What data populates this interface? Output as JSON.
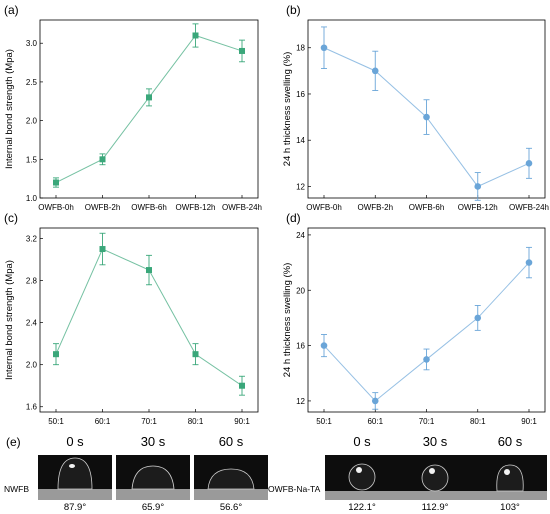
{
  "chart_data": [
    {
      "panel": "(a)",
      "type": "line",
      "color": "#3aa77a",
      "marker": "square",
      "ylabel": "Internal bond strength (Mpa)",
      "categories": [
        "OWFB-0h",
        "OWFB-2h",
        "OWFB-6h",
        "OWFB-12h",
        "OWFB-24h"
      ],
      "values": [
        1.2,
        1.5,
        2.3,
        3.1,
        2.9
      ],
      "errors": [
        0.06,
        0.07,
        0.11,
        0.15,
        0.14
      ],
      "ylim": [
        1.0,
        3.3
      ],
      "yticks": [
        1.0,
        1.5,
        2.0,
        2.5,
        3.0
      ],
      "ytick_labels": [
        "1.0",
        "1.5",
        "2.0",
        "2.5",
        "3.0"
      ]
    },
    {
      "panel": "(b)",
      "type": "line",
      "color": "#6aa5d8",
      "marker": "circle",
      "ylabel": "24 h thickness swelling (%)",
      "categories": [
        "OWFB-0h",
        "OWFB-2h",
        "OWFB-6h",
        "OWFB-12h",
        "OWFB-24h"
      ],
      "values": [
        18,
        17,
        15,
        12,
        13
      ],
      "errors": [
        0.9,
        0.85,
        0.75,
        0.6,
        0.65
      ],
      "ylim": [
        11.5,
        19.2
      ],
      "yticks": [
        12,
        14,
        16,
        18
      ],
      "ytick_labels": [
        "12",
        "14",
        "16",
        "18"
      ]
    },
    {
      "panel": "(c)",
      "type": "line",
      "color": "#3aa77a",
      "marker": "square",
      "ylabel": "Internal bond strength (Mpa)",
      "categories": [
        "50:1",
        "60:1",
        "70:1",
        "80:1",
        "90:1"
      ],
      "values": [
        2.1,
        3.1,
        2.9,
        2.1,
        1.8
      ],
      "errors": [
        0.1,
        0.15,
        0.14,
        0.1,
        0.09
      ],
      "ylim": [
        1.55,
        3.3
      ],
      "yticks": [
        1.6,
        2.0,
        2.4,
        2.8,
        3.2
      ],
      "ytick_labels": [
        "1.6",
        "2.0",
        "2.4",
        "2.8",
        "3.2"
      ]
    },
    {
      "panel": "(d)",
      "type": "line",
      "color": "#6aa5d8",
      "marker": "circle",
      "ylabel": "24 h thickness swelling (%)",
      "categories": [
        "50:1",
        "60:1",
        "70:1",
        "80:1",
        "90:1"
      ],
      "values": [
        16,
        12,
        15,
        18,
        22
      ],
      "errors": [
        0.8,
        0.6,
        0.75,
        0.9,
        1.1
      ],
      "ylim": [
        11.2,
        24.5
      ],
      "yticks": [
        12,
        16,
        20,
        24
      ],
      "ytick_labels": [
        "12",
        "16",
        "20",
        "24"
      ]
    }
  ],
  "contact_angle": {
    "panel": "(e)",
    "times": [
      "0 s",
      "30 s",
      "60 s",
      "0 s",
      "30 s",
      "60 s"
    ],
    "samples": [
      {
        "name": "NWFB",
        "angles": [
          "87.9°",
          "65.9°",
          "56.6°"
        ]
      },
      {
        "name": "OWFB-Na-TA",
        "angles": [
          "122.1°",
          "112.9°",
          "103°"
        ]
      }
    ]
  }
}
